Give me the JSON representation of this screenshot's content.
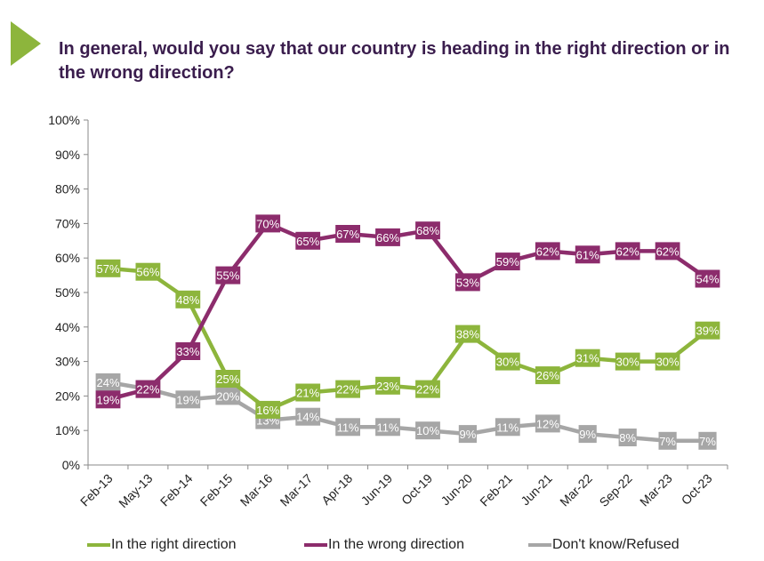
{
  "header": {
    "title": "In general, would you say that our country is heading in the right direction or in the wrong direction?"
  },
  "chart_data": {
    "type": "line",
    "title": "In general, would you say that our country is heading in the right direction or in the wrong direction?",
    "categories": [
      "Feb-13",
      "May-13",
      "Feb-14",
      "Feb-15",
      "Mar-16",
      "Mar-17",
      "Apr-18",
      "Jun-19",
      "Oct-19",
      "Jun-20",
      "Feb-21",
      "Jun-21",
      "Mar-22",
      "Sep-22",
      "Mar-23",
      "Oct-23"
    ],
    "ylim": [
      0,
      100
    ],
    "yticks": [
      "0%",
      "10%",
      "20%",
      "30%",
      "40%",
      "50%",
      "60%",
      "70%",
      "80%",
      "90%",
      "100%"
    ],
    "grid": false,
    "legend_position": "bottom",
    "series": [
      {
        "name": "In the right direction",
        "color": "#8db53c",
        "values": [
          57,
          56,
          48,
          25,
          16,
          21,
          22,
          23,
          22,
          38,
          30,
          26,
          31,
          30,
          30,
          39
        ],
        "labels": [
          "57%",
          "56%",
          "48%",
          "25%",
          "16%",
          "21%",
          "22%",
          "23%",
          "22%",
          "38%",
          "30%",
          "26%",
          "31%",
          "30%",
          "30%",
          "39%"
        ]
      },
      {
        "name": "In the wrong direction",
        "color": "#8c2c6c",
        "values": [
          19,
          22,
          33,
          55,
          70,
          65,
          67,
          66,
          68,
          53,
          59,
          62,
          61,
          62,
          62,
          54
        ],
        "labels": [
          "19%",
          "22%",
          "33%",
          "55%",
          "70%",
          "65%",
          "67%",
          "66%",
          "68%",
          "53%",
          "59%",
          "62%",
          "61%",
          "62%",
          "62%",
          "54%"
        ]
      },
      {
        "name": "Don't know/Refused",
        "color": "#a6a6a6",
        "values": [
          24,
          22,
          19,
          20,
          13,
          14,
          11,
          11,
          10,
          9,
          11,
          12,
          9,
          8,
          7,
          7
        ],
        "labels": [
          "24%",
          "22%",
          "19%",
          "20%",
          "13%",
          "14%",
          "11%",
          "11%",
          "10%",
          "9%",
          "11%",
          "12%",
          "9%",
          "8%",
          "7%",
          "7%"
        ]
      }
    ]
  }
}
